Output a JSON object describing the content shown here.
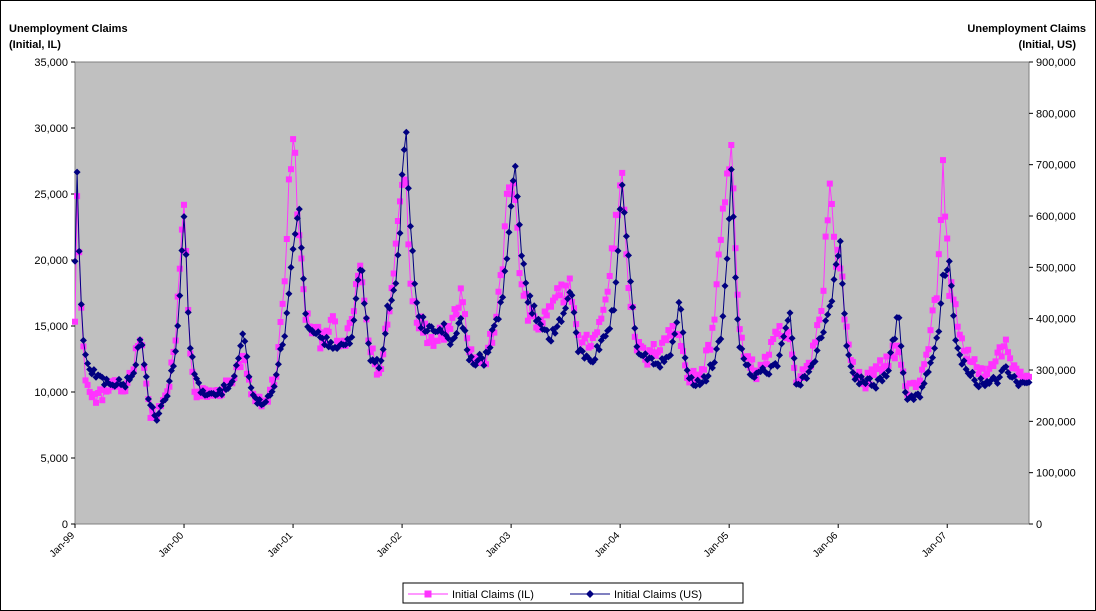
{
  "chart_data": {
    "type": "line",
    "left_axis_title": [
      "Unemployment Claims",
      "(Initial, IL)"
    ],
    "right_axis_title": [
      "Unemployment Claims",
      "(Initial, US)"
    ],
    "x_tick_labels": [
      "Jan-99",
      "Jan-00",
      "Jan-01",
      "Jan-02",
      "Jan-03",
      "Jan-04",
      "Jan-05",
      "Jan-06",
      "Jan-07"
    ],
    "x_range_years": [
      1999.0,
      2007.75
    ],
    "y_left": {
      "min": 0,
      "max": 35000,
      "ticks": [
        "0",
        "5,000",
        "10,000",
        "15,000",
        "20,000",
        "25,000",
        "30,000",
        "35,000"
      ]
    },
    "y_right": {
      "min": 0,
      "max": 900000,
      "ticks": [
        "0",
        "100,000",
        "200,000",
        "300,000",
        "400,000",
        "500,000",
        "600,000",
        "700,000",
        "800,000",
        "900,000"
      ]
    },
    "plot_background": "#c0c0c0",
    "legend_position": "bottom",
    "series": [
      {
        "name": "Initial Claims (IL)",
        "axis": "left",
        "color": "#ff33ff",
        "marker": "square",
        "anchors": [
          [
            1999.0,
            16100
          ],
          [
            1999.02,
            26500
          ],
          [
            1999.04,
            20000
          ],
          [
            1999.07,
            13500
          ],
          [
            1999.1,
            11000
          ],
          [
            1999.15,
            9500
          ],
          [
            1999.25,
            9800
          ],
          [
            1999.35,
            10500
          ],
          [
            1999.45,
            10000
          ],
          [
            1999.55,
            12500
          ],
          [
            1999.6,
            14800
          ],
          [
            1999.68,
            8500
          ],
          [
            1999.75,
            8200
          ],
          [
            1999.85,
            10000
          ],
          [
            1999.92,
            13500
          ],
          [
            1999.96,
            19500
          ],
          [
            2000.0,
            24000
          ],
          [
            2000.05,
            14000
          ],
          [
            2000.1,
            9500
          ],
          [
            2000.2,
            10000
          ],
          [
            2000.3,
            9800
          ],
          [
            2000.45,
            11000
          ],
          [
            2000.55,
            12500
          ],
          [
            2000.62,
            9500
          ],
          [
            2000.75,
            9200
          ],
          [
            2000.85,
            11500
          ],
          [
            2000.92,
            18500
          ],
          [
            2000.97,
            26500
          ],
          [
            2001.01,
            29000
          ],
          [
            2001.06,
            21000
          ],
          [
            2001.12,
            15500
          ],
          [
            2001.25,
            14000
          ],
          [
            2001.35,
            15500
          ],
          [
            2001.45,
            13000
          ],
          [
            2001.55,
            16000
          ],
          [
            2001.62,
            19500
          ],
          [
            2001.7,
            13500
          ],
          [
            2001.8,
            11000
          ],
          [
            2001.87,
            16000
          ],
          [
            2001.92,
            18500
          ],
          [
            2001.97,
            24000
          ],
          [
            2002.03,
            27000
          ],
          [
            2002.08,
            18000
          ],
          [
            2002.15,
            15500
          ],
          [
            2002.25,
            14000
          ],
          [
            2002.35,
            14500
          ],
          [
            2002.45,
            15000
          ],
          [
            2002.55,
            18000
          ],
          [
            2002.62,
            13000
          ],
          [
            2002.75,
            12000
          ],
          [
            2002.85,
            15000
          ],
          [
            2002.92,
            19000
          ],
          [
            2002.97,
            26500
          ],
          [
            2003.03,
            25000
          ],
          [
            2003.08,
            19000
          ],
          [
            2003.15,
            16000
          ],
          [
            2003.25,
            15000
          ],
          [
            2003.35,
            16000
          ],
          [
            2003.45,
            17500
          ],
          [
            2003.55,
            18000
          ],
          [
            2003.62,
            13500
          ],
          [
            2003.75,
            14000
          ],
          [
            2003.85,
            16000
          ],
          [
            2003.92,
            20000
          ],
          [
            2003.97,
            23500
          ],
          [
            2004.02,
            27000
          ],
          [
            2004.08,
            18000
          ],
          [
            2004.15,
            13500
          ],
          [
            2004.25,
            12500
          ],
          [
            2004.35,
            13500
          ],
          [
            2004.45,
            14500
          ],
          [
            2004.55,
            14500
          ],
          [
            2004.62,
            11000
          ],
          [
            2004.75,
            11500
          ],
          [
            2004.85,
            14500
          ],
          [
            2004.92,
            22000
          ],
          [
            2004.97,
            25000
          ],
          [
            2005.02,
            28500
          ],
          [
            2005.08,
            16000
          ],
          [
            2005.15,
            12500
          ],
          [
            2005.25,
            11500
          ],
          [
            2005.35,
            12500
          ],
          [
            2005.45,
            14500
          ],
          [
            2005.55,
            14000
          ],
          [
            2005.62,
            10500
          ],
          [
            2005.75,
            12500
          ],
          [
            2005.85,
            16500
          ],
          [
            2005.92,
            26000
          ],
          [
            2005.97,
            20500
          ],
          [
            2006.02,
            20000
          ],
          [
            2006.08,
            14000
          ],
          [
            2006.15,
            11500
          ],
          [
            2006.25,
            10800
          ],
          [
            2006.35,
            11500
          ],
          [
            2006.45,
            12500
          ],
          [
            2006.55,
            13500
          ],
          [
            2006.62,
            10000
          ],
          [
            2006.75,
            11000
          ],
          [
            2006.85,
            14500
          ],
          [
            2006.92,
            19000
          ],
          [
            2006.96,
            27000
          ],
          [
            2007.02,
            18000
          ],
          [
            2007.08,
            16500
          ],
          [
            2007.15,
            13000
          ],
          [
            2007.25,
            12000
          ],
          [
            2007.35,
            11500
          ],
          [
            2007.45,
            12500
          ],
          [
            2007.55,
            13500
          ],
          [
            2007.65,
            11000
          ],
          [
            2007.75,
            11000
          ]
        ]
      },
      {
        "name": "Initial Claims (US)",
        "axis": "right",
        "color": "#000080",
        "marker": "diamond",
        "anchors": [
          [
            1999.0,
            510000
          ],
          [
            1999.02,
            710000
          ],
          [
            1999.04,
            510000
          ],
          [
            1999.07,
            360000
          ],
          [
            1999.1,
            320000
          ],
          [
            1999.15,
            300000
          ],
          [
            1999.25,
            280000
          ],
          [
            1999.35,
            275000
          ],
          [
            1999.45,
            270000
          ],
          [
            1999.55,
            300000
          ],
          [
            1999.6,
            370000
          ],
          [
            1999.68,
            240000
          ],
          [
            1999.75,
            200000
          ],
          [
            1999.85,
            260000
          ],
          [
            1999.92,
            330000
          ],
          [
            1999.96,
            430000
          ],
          [
            2000.0,
            610000
          ],
          [
            2000.05,
            360000
          ],
          [
            2000.1,
            280000
          ],
          [
            2000.2,
            250000
          ],
          [
            2000.3,
            250000
          ],
          [
            2000.45,
            280000
          ],
          [
            2000.55,
            370000
          ],
          [
            2000.62,
            250000
          ],
          [
            2000.75,
            230000
          ],
          [
            2000.85,
            290000
          ],
          [
            2000.92,
            370000
          ],
          [
            2000.97,
            480000
          ],
          [
            2001.01,
            570000
          ],
          [
            2001.06,
            600000
          ],
          [
            2001.12,
            400000
          ],
          [
            2001.25,
            360000
          ],
          [
            2001.35,
            350000
          ],
          [
            2001.45,
            340000
          ],
          [
            2001.55,
            370000
          ],
          [
            2001.62,
            520000
          ],
          [
            2001.7,
            330000
          ],
          [
            2001.8,
            310000
          ],
          [
            2001.87,
            420000
          ],
          [
            2001.92,
            450000
          ],
          [
            2001.97,
            520000
          ],
          [
            2002.03,
            800000
          ],
          [
            2002.08,
            560000
          ],
          [
            2002.15,
            400000
          ],
          [
            2002.25,
            380000
          ],
          [
            2002.35,
            390000
          ],
          [
            2002.45,
            360000
          ],
          [
            2002.55,
            400000
          ],
          [
            2002.62,
            320000
          ],
          [
            2002.75,
            320000
          ],
          [
            2002.85,
            380000
          ],
          [
            2002.92,
            430000
          ],
          [
            2002.97,
            550000
          ],
          [
            2003.03,
            720000
          ],
          [
            2003.08,
            560000
          ],
          [
            2003.15,
            440000
          ],
          [
            2003.25,
            400000
          ],
          [
            2003.35,
            360000
          ],
          [
            2003.45,
            400000
          ],
          [
            2003.55,
            460000
          ],
          [
            2003.62,
            330000
          ],
          [
            2003.75,
            320000
          ],
          [
            2003.85,
            370000
          ],
          [
            2003.92,
            400000
          ],
          [
            2003.97,
            470000
          ],
          [
            2004.02,
            680000
          ],
          [
            2004.08,
            500000
          ],
          [
            2004.15,
            340000
          ],
          [
            2004.25,
            320000
          ],
          [
            2004.35,
            310000
          ],
          [
            2004.45,
            320000
          ],
          [
            2004.55,
            440000
          ],
          [
            2004.62,
            280000
          ],
          [
            2004.75,
            270000
          ],
          [
            2004.85,
            310000
          ],
          [
            2004.92,
            360000
          ],
          [
            2004.97,
            480000
          ],
          [
            2005.02,
            690000
          ],
          [
            2005.08,
            370000
          ],
          [
            2005.15,
            310000
          ],
          [
            2005.25,
            290000
          ],
          [
            2005.35,
            300000
          ],
          [
            2005.45,
            310000
          ],
          [
            2005.55,
            420000
          ],
          [
            2005.62,
            260000
          ],
          [
            2005.75,
            300000
          ],
          [
            2005.85,
            370000
          ],
          [
            2005.92,
            420000
          ],
          [
            2005.97,
            480000
          ],
          [
            2006.02,
            550000
          ],
          [
            2006.08,
            330000
          ],
          [
            2006.15,
            280000
          ],
          [
            2006.25,
            280000
          ],
          [
            2006.35,
            270000
          ],
          [
            2006.45,
            290000
          ],
          [
            2006.55,
            410000
          ],
          [
            2006.62,
            250000
          ],
          [
            2006.75,
            250000
          ],
          [
            2006.85,
            310000
          ],
          [
            2006.92,
            380000
          ],
          [
            2006.96,
            470000
          ],
          [
            2007.02,
            500000
          ],
          [
            2007.08,
            360000
          ],
          [
            2007.15,
            310000
          ],
          [
            2007.25,
            280000
          ],
          [
            2007.35,
            270000
          ],
          [
            2007.45,
            280000
          ],
          [
            2007.55,
            300000
          ],
          [
            2007.65,
            270000
          ],
          [
            2007.75,
            270000
          ]
        ]
      }
    ]
  }
}
